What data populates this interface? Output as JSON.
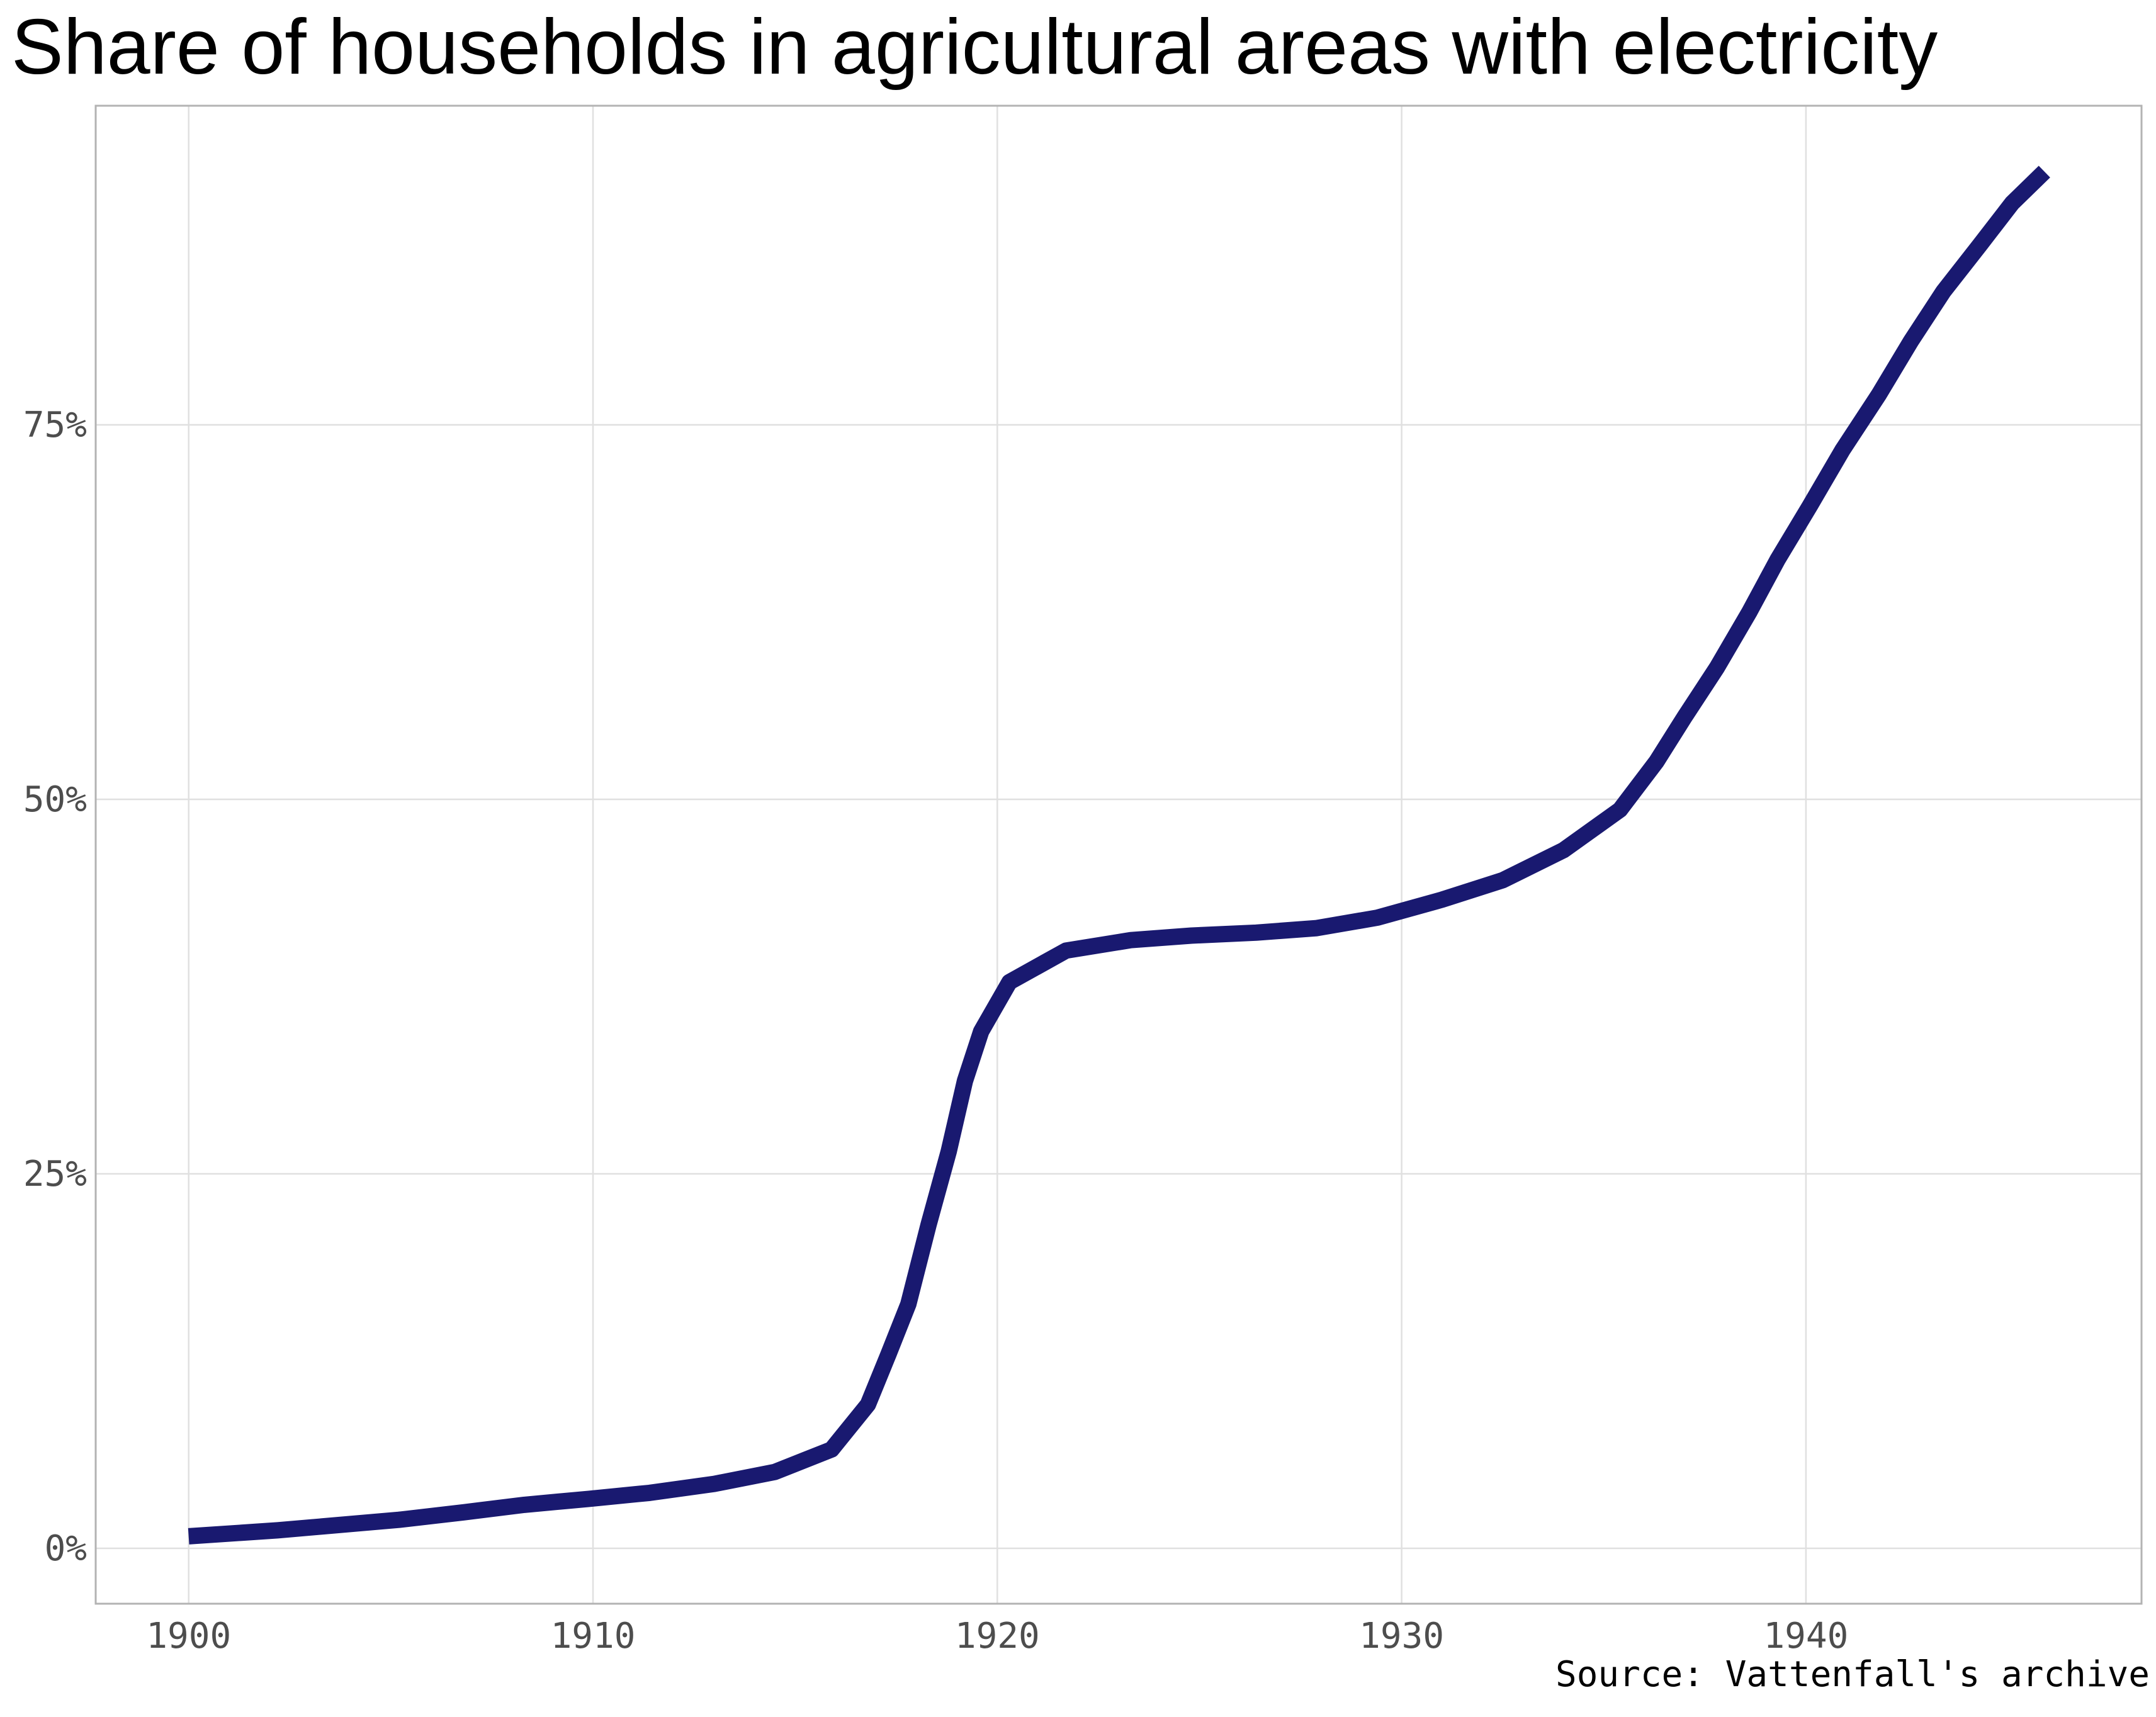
{
  "chart_data": {
    "type": "line",
    "title": "Share of households in agricultural areas with electricity",
    "caption": "Source: Vattenfall's archive",
    "xlabel": "",
    "ylabel": "",
    "xlim": [
      1897.7,
      1948.3
    ],
    "ylim": [
      -3.7,
      96.3
    ],
    "x_ticks": [
      1900,
      1910,
      1920,
      1930,
      1940
    ],
    "y_ticks": [
      0,
      25,
      50,
      75
    ],
    "y_tick_labels": [
      "0%",
      "25%",
      "50%",
      "75%"
    ],
    "grid": true,
    "legend": "none",
    "series": [
      {
        "color": "#191970",
        "x": [
          1900,
          1902.2,
          1905.2,
          1906.8,
          1908.3,
          1909.9,
          1911.4,
          1913.0,
          1914.5,
          1915.9,
          1916.8,
          1917.3,
          1917.8,
          1918.3,
          1918.8,
          1919.2,
          1919.6,
          1920.3,
          1921.7,
          1923.3,
          1924.8,
          1926.4,
          1927.9,
          1929.4,
          1931.0,
          1932.5,
          1934.0,
          1935.4,
          1936.3,
          1937.0,
          1937.8,
          1938.6,
          1939.3,
          1940.1,
          1940.9,
          1941.8,
          1942.6,
          1943.4,
          1944.3,
          1945.1,
          1945.9
        ],
        "y": [
          0.8,
          1.2,
          1.9,
          2.4,
          2.9,
          3.3,
          3.7,
          4.3,
          5.1,
          6.6,
          9.6,
          12.9,
          16.3,
          21.6,
          26.5,
          31.2,
          34.5,
          37.8,
          39.9,
          40.6,
          40.9,
          41.1,
          41.4,
          42.1,
          43.3,
          44.6,
          46.6,
          49.3,
          52.5,
          55.5,
          58.8,
          62.5,
          66.0,
          69.6,
          73.3,
          77.0,
          80.6,
          83.9,
          87.0,
          89.8,
          91.9
        ]
      }
    ]
  }
}
